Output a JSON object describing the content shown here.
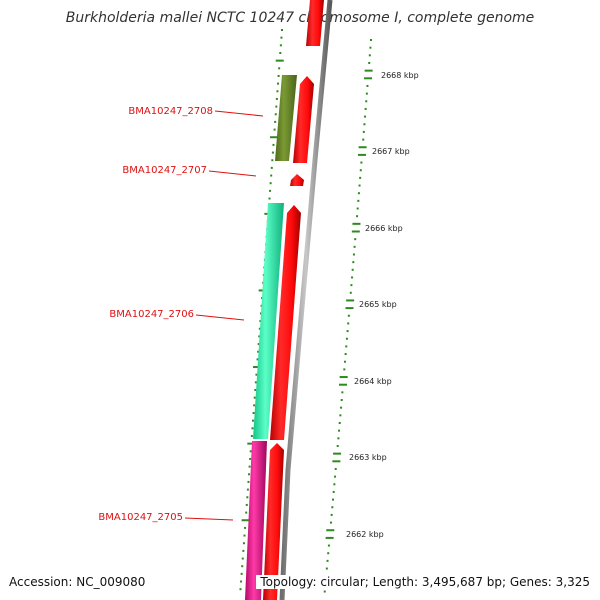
{
  "title": "Burkholderia mallei NCTC 10247 chromosome I, complete genome",
  "accession": "Accession: NC_009080",
  "info": "Topology: circular; Length: 3,495,687 bp; Genes: 3,325",
  "colors": {
    "backbone": "#8a8a8a",
    "forward": "#ff1010",
    "tick": "#2d8a1e",
    "gene_2708": "#6b8a2a",
    "gene_2706": "#22f0a8",
    "gene_2705": "#e8108c",
    "label": "#e01010"
  },
  "scale_labels": [
    {
      "kbp": 2668,
      "label": "2668 kbp"
    },
    {
      "kbp": 2667,
      "label": "2667 kbp"
    },
    {
      "kbp": 2666,
      "label": "2666 kbp"
    },
    {
      "kbp": 2665,
      "label": "2665 kbp"
    },
    {
      "kbp": 2664,
      "label": "2664 kbp"
    },
    {
      "kbp": 2663,
      "label": "2663 kbp"
    },
    {
      "kbp": 2662,
      "label": "2662 kbp"
    }
  ],
  "genes": [
    {
      "name": "BMA10247_2708"
    },
    {
      "name": "BMA10247_2707"
    },
    {
      "name": "BMA10247_2706"
    },
    {
      "name": "BMA10247_2705"
    }
  ]
}
